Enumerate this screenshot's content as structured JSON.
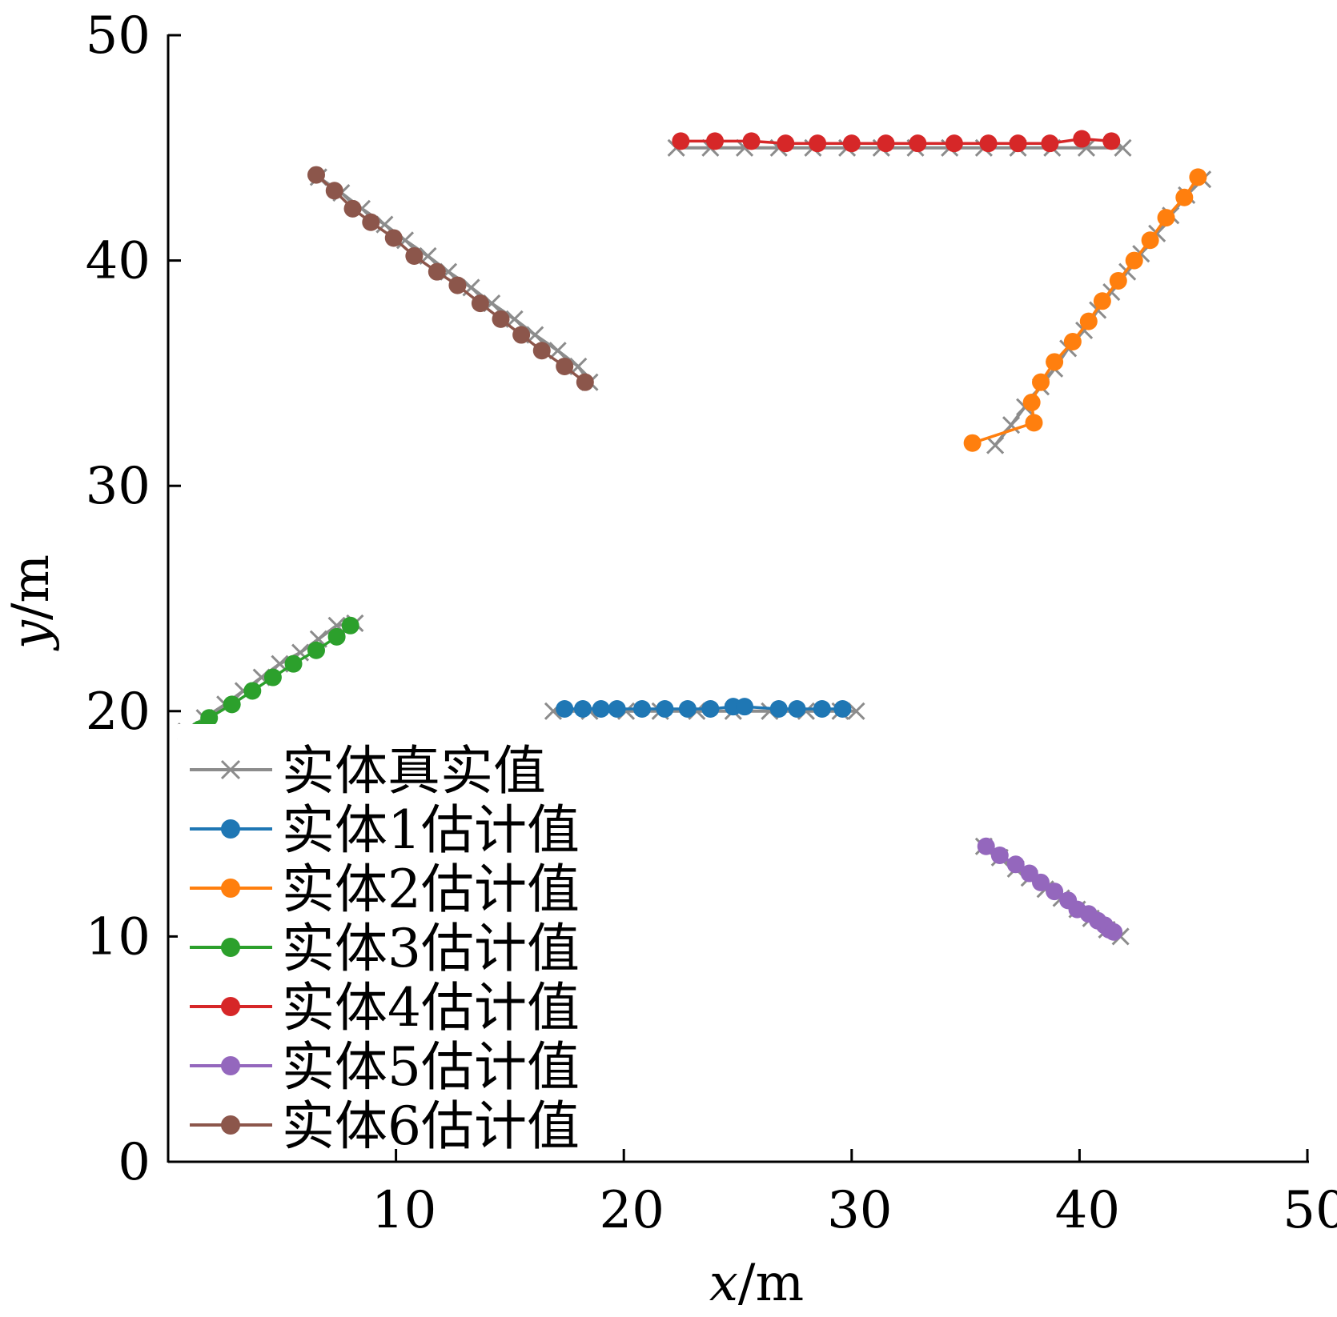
{
  "chart_data": {
    "type": "line",
    "title": "",
    "xlabel": "x/m",
    "ylabel": "y/m",
    "xlim": [
      0,
      50
    ],
    "ylim": [
      0,
      50
    ],
    "xticks": [
      10,
      20,
      30,
      40,
      50
    ],
    "yticks": [
      0,
      10,
      20,
      30,
      40,
      50
    ],
    "grid": false,
    "legend_position": "bottom-left",
    "series": [
      {
        "name": "实体真实值",
        "color": "#8c8c8c",
        "marker": "x",
        "segments": [
          {
            "x": [
              16.9,
              18.5,
              20.1,
              21.6,
              23.2,
              24.8,
              26.4,
              28.0,
              29.5,
              30.2
            ],
            "y": [
              20.0,
              20.0,
              20.0,
              20.0,
              20.0,
              20.0,
              20.0,
              20.0,
              20.0,
              20.0
            ]
          },
          {
            "x": [
              36.3,
              37.0,
              37.6,
              38.3,
              38.9,
              39.5,
              40.2,
              40.8,
              41.4,
              42.1,
              42.7,
              43.4,
              44.0,
              44.7,
              45.4
            ],
            "y": [
              31.8,
              32.7,
              33.5,
              34.4,
              35.2,
              36.1,
              36.9,
              37.8,
              38.6,
              39.5,
              40.3,
              41.2,
              42.0,
              42.9,
              43.6
            ]
          },
          {
            "x": [
              0.8,
              1.6,
              2.5,
              3.3,
              4.1,
              4.9,
              5.8,
              6.6,
              7.4,
              8.2
            ],
            "y": [
              19.1,
              19.7,
              20.3,
              20.9,
              21.5,
              22.1,
              22.6,
              23.2,
              23.8,
              23.9
            ]
          },
          {
            "x": [
              22.3,
              23.8,
              25.3,
              26.8,
              28.3,
              29.8,
              31.3,
              32.8,
              34.3,
              35.8,
              37.3,
              38.8,
              40.3,
              41.9
            ],
            "y": [
              45.0,
              45.0,
              45.0,
              45.0,
              45.0,
              45.0,
              45.0,
              45.0,
              45.0,
              45.0,
              45.0,
              45.0,
              45.0,
              45.0
            ]
          },
          {
            "x": [
              35.8,
              36.5,
              37.2,
              37.8,
              38.5,
              39.2,
              39.9,
              40.5,
              41.2,
              41.8
            ],
            "y": [
              14.0,
              13.5,
              13.0,
              12.6,
              12.1,
              11.7,
              11.2,
              10.8,
              10.3,
              10.0
            ]
          },
          {
            "x": [
              6.6,
              7.6,
              8.5,
              9.5,
              10.4,
              11.4,
              12.3,
              13.3,
              14.2,
              15.2,
              16.1,
              17.1,
              18.0,
              18.5
            ],
            "y": [
              43.7,
              43.0,
              42.3,
              41.6,
              40.9,
              40.2,
              39.5,
              38.8,
              38.1,
              37.4,
              36.7,
              36.0,
              35.3,
              34.6
            ]
          }
        ]
      },
      {
        "name": "实体1估计值",
        "color": "#1f77b4",
        "marker": "o",
        "x": [
          17.4,
          18.2,
          19.0,
          19.7,
          20.8,
          21.8,
          22.8,
          23.8,
          24.8,
          25.3,
          26.8,
          27.6,
          28.7,
          29.6
        ],
        "y": [
          20.1,
          20.1,
          20.1,
          20.1,
          20.1,
          20.1,
          20.1,
          20.1,
          20.2,
          20.2,
          20.1,
          20.1,
          20.1,
          20.1
        ]
      },
      {
        "name": "实体2估计值",
        "color": "#ff7f0e",
        "marker": "o",
        "x": [
          35.3,
          38.0,
          37.9,
          38.3,
          38.9,
          39.7,
          40.4,
          41.0,
          41.7,
          42.4,
          43.1,
          43.8,
          44.6,
          45.2
        ],
        "y": [
          31.9,
          32.8,
          33.7,
          34.6,
          35.5,
          36.4,
          37.3,
          38.2,
          39.1,
          40.0,
          40.9,
          41.9,
          42.8,
          43.7
        ]
      },
      {
        "name": "实体3估计值",
        "color": "#2ca02c",
        "marker": "o",
        "x": [
          1.4,
          1.8,
          2.8,
          3.7,
          4.6,
          5.5,
          6.5,
          7.4,
          8.0
        ],
        "y": [
          19.2,
          19.7,
          20.3,
          20.9,
          21.5,
          22.1,
          22.7,
          23.3,
          23.8
        ]
      },
      {
        "name": "实体4估计值",
        "color": "#d62728",
        "marker": "o",
        "x": [
          22.5,
          24.0,
          25.6,
          27.1,
          28.5,
          30.0,
          31.5,
          32.9,
          34.5,
          36.0,
          37.3,
          38.7,
          40.1,
          41.4
        ],
        "y": [
          45.3,
          45.3,
          45.3,
          45.2,
          45.2,
          45.2,
          45.2,
          45.2,
          45.2,
          45.2,
          45.2,
          45.2,
          45.4,
          45.3
        ]
      },
      {
        "name": "实体5估计值",
        "color": "#9467bd",
        "marker": "o",
        "x": [
          35.9,
          36.5,
          37.2,
          37.8,
          38.3,
          38.9,
          39.5,
          39.9,
          40.4,
          40.8,
          41.1,
          41.3,
          41.5
        ],
        "y": [
          14.0,
          13.6,
          13.2,
          12.8,
          12.4,
          12.0,
          11.6,
          11.2,
          11.0,
          10.7,
          10.5,
          10.3,
          10.2
        ]
      },
      {
        "name": "实体6估计值",
        "color": "#8c564b",
        "marker": "o",
        "x": [
          6.5,
          7.3,
          8.1,
          8.9,
          9.9,
          10.8,
          11.8,
          12.7,
          13.7,
          14.6,
          15.5,
          16.4,
          17.4,
          18.3
        ],
        "y": [
          43.8,
          43.1,
          42.3,
          41.7,
          41.0,
          40.2,
          39.5,
          38.9,
          38.1,
          37.4,
          36.7,
          36.0,
          35.3,
          34.6
        ]
      }
    ]
  }
}
